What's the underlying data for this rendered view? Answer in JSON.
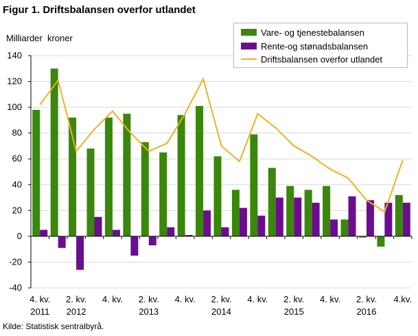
{
  "title": "Figur 1. Driftsbalansen overfor utlandet",
  "source": "Kilde: Statistisk sentralbyrå.",
  "colors": {
    "green": "#3a870b",
    "purple": "#6b0d8e",
    "line": "#e8b322",
    "axis": "#000000",
    "grid": "#d9d9d9"
  },
  "chart_data": {
    "type": "bar",
    "title": "Figur 1. Driftsbalansen overfor utlandet",
    "ylabel": "Milliarder  kroner",
    "xlabel": "",
    "ylim": [
      -40,
      140
    ],
    "yticks": [
      -40,
      -20,
      0,
      20,
      40,
      60,
      80,
      100,
      120,
      140
    ],
    "periods": [
      "4. kv. 2011",
      "1. kv. 2012",
      "2. kv. 2012",
      "3. kv. 2012",
      "4. kv. 2012",
      "1. kv. 2013",
      "2. kv. 2013",
      "3. kv. 2013",
      "4. kv. 2013",
      "1. kv. 2014",
      "2. kv. 2014",
      "3. kv. 2014",
      "4. kv. 2014",
      "1. kv. 2015",
      "2. kv. 2015",
      "3. kv. 2015",
      "4. kv. 2015",
      "1. kv. 2016",
      "2. kv. 2016",
      "3. kv. 2016",
      "4. kv. 2016"
    ],
    "xtick_labels": [
      {
        "index": 0,
        "line1": "4. kv.",
        "line2": "2011"
      },
      {
        "index": 2,
        "line1": "2. kv.",
        "line2": "2012"
      },
      {
        "index": 4,
        "line1": "4. kv.",
        "line2": ""
      },
      {
        "index": 6,
        "line1": "2. kv.",
        "line2": "2013"
      },
      {
        "index": 8,
        "line1": "4. kv.",
        "line2": ""
      },
      {
        "index": 10,
        "line1": "2. kv.",
        "line2": "2014"
      },
      {
        "index": 12,
        "line1": "4. kv.",
        "line2": ""
      },
      {
        "index": 14,
        "line1": "2. kv.",
        "line2": "2015"
      },
      {
        "index": 16,
        "line1": "4. kv.",
        "line2": ""
      },
      {
        "index": 18,
        "line1": "2. kv.",
        "line2": "2016"
      },
      {
        "index": 20,
        "line1": "4.kv.",
        "line2": ""
      }
    ],
    "series": [
      {
        "name": "Vare- og tjenestebalansen",
        "kind": "bar",
        "values": [
          98,
          130,
          92,
          68,
          92,
          95,
          73,
          65,
          94,
          101,
          62,
          36,
          79,
          53,
          39,
          36,
          39,
          13,
          -1,
          -8,
          32
        ]
      },
      {
        "name": "Rente-og stønadsbalansen",
        "kind": "bar",
        "values": [
          5,
          -9,
          -26,
          15,
          5,
          -15,
          -7,
          7,
          1,
          20,
          7,
          22,
          16,
          30,
          30,
          26,
          13,
          31,
          28,
          26,
          26
        ]
      },
      {
        "name": "Driftsbalansen overfor utlandet",
        "kind": "line",
        "values": [
          102,
          121,
          66,
          83,
          97,
          80,
          66,
          72,
          95,
          122,
          70,
          58,
          95,
          84,
          70,
          62,
          52,
          45,
          28,
          19,
          59
        ]
      }
    ],
    "legend_position": "top-right",
    "grid": true
  }
}
